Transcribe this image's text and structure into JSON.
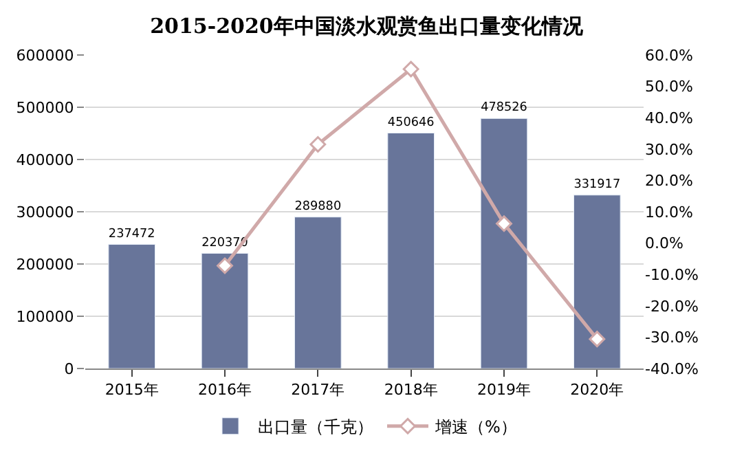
{
  "chart_data": {
    "type": "bar",
    "title": "2015-2020年中国淡水观赏鱼出口量变化情况",
    "categories": [
      "2015年",
      "2016年",
      "2017年",
      "2018年",
      "2019年",
      "2020年"
    ],
    "series": [
      {
        "name": "出口量（千克）",
        "color": "#68759a",
        "values": [
          237472,
          220370,
          289880,
          450646,
          478526,
          331917
        ],
        "value_labels": [
          "237472",
          "220370",
          "289880",
          "450646",
          "478526",
          "331917"
        ]
      },
      {
        "name": "增速（%）",
        "type": "line",
        "axis": "y2",
        "color": "#d0a9a9",
        "marker": "diamond",
        "values": [
          null,
          -7.2,
          31.5,
          55.5,
          6.2,
          -30.6
        ]
      }
    ],
    "ylim": [
      0,
      600000
    ],
    "yticks": [
      0,
      100000,
      200000,
      300000,
      400000,
      500000,
      600000
    ],
    "y2lim": [
      -40,
      60
    ],
    "y2ticks": [
      {
        "value": -40,
        "label": "-40.0%"
      },
      {
        "value": -30,
        "label": "-30.0%"
      },
      {
        "value": -20,
        "label": "-20.0%"
      },
      {
        "value": -10,
        "label": "-10.0%"
      },
      {
        "value": 0,
        "label": "0.0%"
      },
      {
        "value": 10,
        "label": "10.0%"
      },
      {
        "value": 20,
        "label": "20.0%"
      },
      {
        "value": 30,
        "label": "30.0%"
      },
      {
        "value": 40,
        "label": "40.0%"
      },
      {
        "value": 50,
        "label": "50.0%"
      },
      {
        "value": 60,
        "label": "60.0%"
      }
    ],
    "grid": "y",
    "legend": "bottom"
  }
}
